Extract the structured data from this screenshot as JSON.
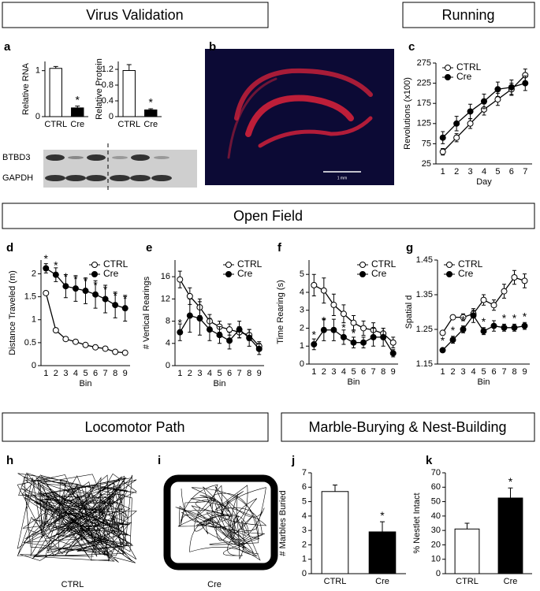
{
  "headers": [
    "Virus Validation",
    "Running",
    "Open Field",
    "Locomotor Path",
    "Marble-Burying & Nest-Building"
  ],
  "panels": [
    "a",
    "b",
    "c",
    "d",
    "e",
    "f",
    "g",
    "h",
    "i",
    "j",
    "k"
  ],
  "blot_labels": [
    "BTBD3",
    "GAPDH"
  ],
  "scale_bar": "1 mm",
  "path_captions": [
    "CTRL",
    "Cre"
  ],
  "chart_data": [
    {
      "type": "bar",
      "ylabel": "Relative RNA",
      "categories": [
        "CTRL",
        "Cre"
      ],
      "values": [
        1.05,
        0.19
      ],
      "errors": [
        0.04,
        0.04
      ],
      "colors": [
        "#ffffff",
        "#000000"
      ],
      "ylim": [
        0,
        1.2
      ],
      "yticks": [
        0,
        1
      ],
      "annotations": [
        null,
        "*"
      ]
    },
    {
      "type": "bar",
      "ylabel": "Relative Protein",
      "categories": [
        "CTRL",
        "Cre"
      ],
      "values": [
        1.17,
        0.17
      ],
      "errors": [
        0.15,
        0.03
      ],
      "colors": [
        "#ffffff",
        "#000000"
      ],
      "ylim": [
        0,
        1.4
      ],
      "yticks": [
        0,
        0.4,
        0.8,
        1.2
      ],
      "annotations": [
        null,
        "*"
      ]
    },
    {
      "type": "line",
      "xlabel": "Day",
      "ylabel": "Revolutions (x100)",
      "categories": [
        "1",
        "2",
        "3",
        "4",
        "5",
        "6",
        "7"
      ],
      "ylim": [
        25,
        275
      ],
      "yticks": [
        25,
        75,
        125,
        175,
        225,
        275
      ],
      "legend": "upper left",
      "series": [
        {
          "name": "CTRL",
          "marker": "open",
          "values": [
            55,
            90,
            125,
            160,
            185,
            210,
            245
          ],
          "errors": [
            8,
            10,
            12,
            14,
            15,
            15,
            15
          ]
        },
        {
          "name": "Cre",
          "marker": "filled",
          "values": [
            90,
            125,
            155,
            180,
            210,
            215,
            225
          ],
          "errors": [
            15,
            18,
            18,
            18,
            18,
            18,
            18
          ]
        }
      ]
    },
    {
      "type": "line",
      "xlabel": "Bin",
      "ylabel": "Distance Traveled (m)",
      "categories": [
        "1",
        "2",
        "3",
        "4",
        "5",
        "6",
        "7",
        "8",
        "9"
      ],
      "ylim": [
        0,
        2.3
      ],
      "yticks": [
        0,
        0.5,
        1,
        1.5,
        2
      ],
      "legend": "upper right",
      "series": [
        {
          "name": "CTRL",
          "marker": "open",
          "values": [
            1.58,
            0.77,
            0.58,
            0.52,
            0.45,
            0.4,
            0.37,
            0.3,
            0.28
          ],
          "errors": [
            0.03,
            0.03,
            0.03,
            0.03,
            0.03,
            0.03,
            0.03,
            0.03,
            0.03
          ]
        },
        {
          "name": "Cre",
          "marker": "filled",
          "values": [
            2.12,
            1.98,
            1.73,
            1.68,
            1.63,
            1.55,
            1.45,
            1.32,
            1.25
          ],
          "errors": [
            0.1,
            0.15,
            0.25,
            0.28,
            0.28,
            0.3,
            0.3,
            0.28,
            0.28
          ],
          "annotations": [
            "*",
            "*",
            "*",
            "*",
            "*",
            "*",
            "*",
            "*",
            "*"
          ]
        }
      ]
    },
    {
      "type": "line",
      "xlabel": "Bin",
      "ylabel": "# Vertical Rearings",
      "categories": [
        "1",
        "2",
        "3",
        "4",
        "5",
        "6",
        "7",
        "8",
        "9"
      ],
      "ylim": [
        0,
        19
      ],
      "yticks": [
        0,
        4,
        8,
        12,
        16
      ],
      "legend": "upper right",
      "series": [
        {
          "name": "CTRL",
          "marker": "open",
          "values": [
            15.5,
            12.5,
            10.5,
            8,
            7,
            6.5,
            6,
            5.5,
            3.5
          ],
          "errors": [
            1.5,
            1.5,
            1.5,
            1.2,
            1,
            1,
            1,
            1,
            0.8
          ]
        },
        {
          "name": "Cre",
          "marker": "filled",
          "values": [
            6,
            9,
            8.5,
            6.5,
            5.5,
            4.5,
            6.5,
            5,
            3
          ],
          "errors": [
            1.5,
            3,
            3,
            2,
            1.5,
            1.5,
            1.5,
            1.5,
            1
          ],
          "annotations": [
            "*",
            null,
            null,
            null,
            null,
            null,
            null,
            null,
            null
          ]
        }
      ]
    },
    {
      "type": "line",
      "xlabel": "Bin",
      "ylabel": "Time Rearing (s)",
      "categories": [
        "1",
        "2",
        "3",
        "4",
        "5",
        "6",
        "7",
        "8",
        "9"
      ],
      "ylim": [
        0,
        5.8
      ],
      "yticks": [
        0,
        1,
        2,
        3,
        4,
        5
      ],
      "legend": "upper right",
      "series": [
        {
          "name": "CTRL",
          "marker": "open",
          "values": [
            4.4,
            4.1,
            3.3,
            2.8,
            2.3,
            2.0,
            1.9,
            1.7,
            1.2
          ],
          "errors": [
            0.6,
            0.7,
            0.6,
            0.5,
            0.4,
            0.4,
            0.4,
            0.3,
            0.3
          ]
        },
        {
          "name": "Cre",
          "marker": "filled",
          "values": [
            1.1,
            1.9,
            1.9,
            1.5,
            1.2,
            1.2,
            1.5,
            1.5,
            0.6
          ],
          "errors": [
            0.3,
            0.6,
            0.6,
            0.4,
            0.3,
            0.3,
            0.5,
            0.5,
            0.2
          ],
          "annotations": [
            "*",
            "*",
            null,
            "*",
            "*",
            null,
            null,
            null,
            null
          ]
        }
      ]
    },
    {
      "type": "line",
      "xlabel": "Bin",
      "ylabel": "Spatial d",
      "categories": [
        "1",
        "2",
        "3",
        "4",
        "5",
        "6",
        "7",
        "8",
        "9"
      ],
      "ylim": [
        1.15,
        1.45
      ],
      "yticks": [
        1.15,
        1.25,
        1.35,
        1.45
      ],
      "legend": "upper left",
      "series": [
        {
          "name": "CTRL",
          "marker": "open",
          "values": [
            1.24,
            1.285,
            1.285,
            1.295,
            1.335,
            1.32,
            1.36,
            1.4,
            1.39
          ],
          "errors": [
            0.005,
            0.005,
            0.01,
            0.01,
            0.015,
            0.015,
            0.02,
            0.02,
            0.02
          ]
        },
        {
          "name": "Cre",
          "marker": "filled",
          "values": [
            1.19,
            1.22,
            1.25,
            1.29,
            1.245,
            1.26,
            1.255,
            1.255,
            1.26
          ],
          "errors": [
            0.005,
            0.01,
            0.01,
            0.02,
            0.01,
            0.015,
            0.01,
            0.01,
            0.01
          ],
          "annotations": [
            "*",
            "*",
            "*",
            null,
            "*",
            null,
            "*",
            "*",
            "*"
          ]
        }
      ]
    },
    {
      "type": "bar",
      "ylabel": "# Marbles Buried",
      "categories": [
        "CTRL",
        "Cre"
      ],
      "values": [
        5.7,
        2.9
      ],
      "errors": [
        0.45,
        0.7
      ],
      "colors": [
        "#ffffff",
        "#000000"
      ],
      "ylim": [
        0,
        7
      ],
      "yticks": [
        0,
        1,
        2,
        3,
        4,
        5,
        6,
        7
      ],
      "annotations": [
        null,
        "*"
      ]
    },
    {
      "type": "bar",
      "ylabel": "% Nestlet Intact",
      "categories": [
        "CTRL",
        "Cre"
      ],
      "values": [
        31,
        52.5
      ],
      "errors": [
        4,
        7
      ],
      "colors": [
        "#ffffff",
        "#000000"
      ],
      "ylim": [
        0,
        70
      ],
      "yticks": [
        0,
        10,
        20,
        30,
        40,
        50,
        60,
        70
      ],
      "annotations": [
        null,
        "*"
      ]
    }
  ]
}
